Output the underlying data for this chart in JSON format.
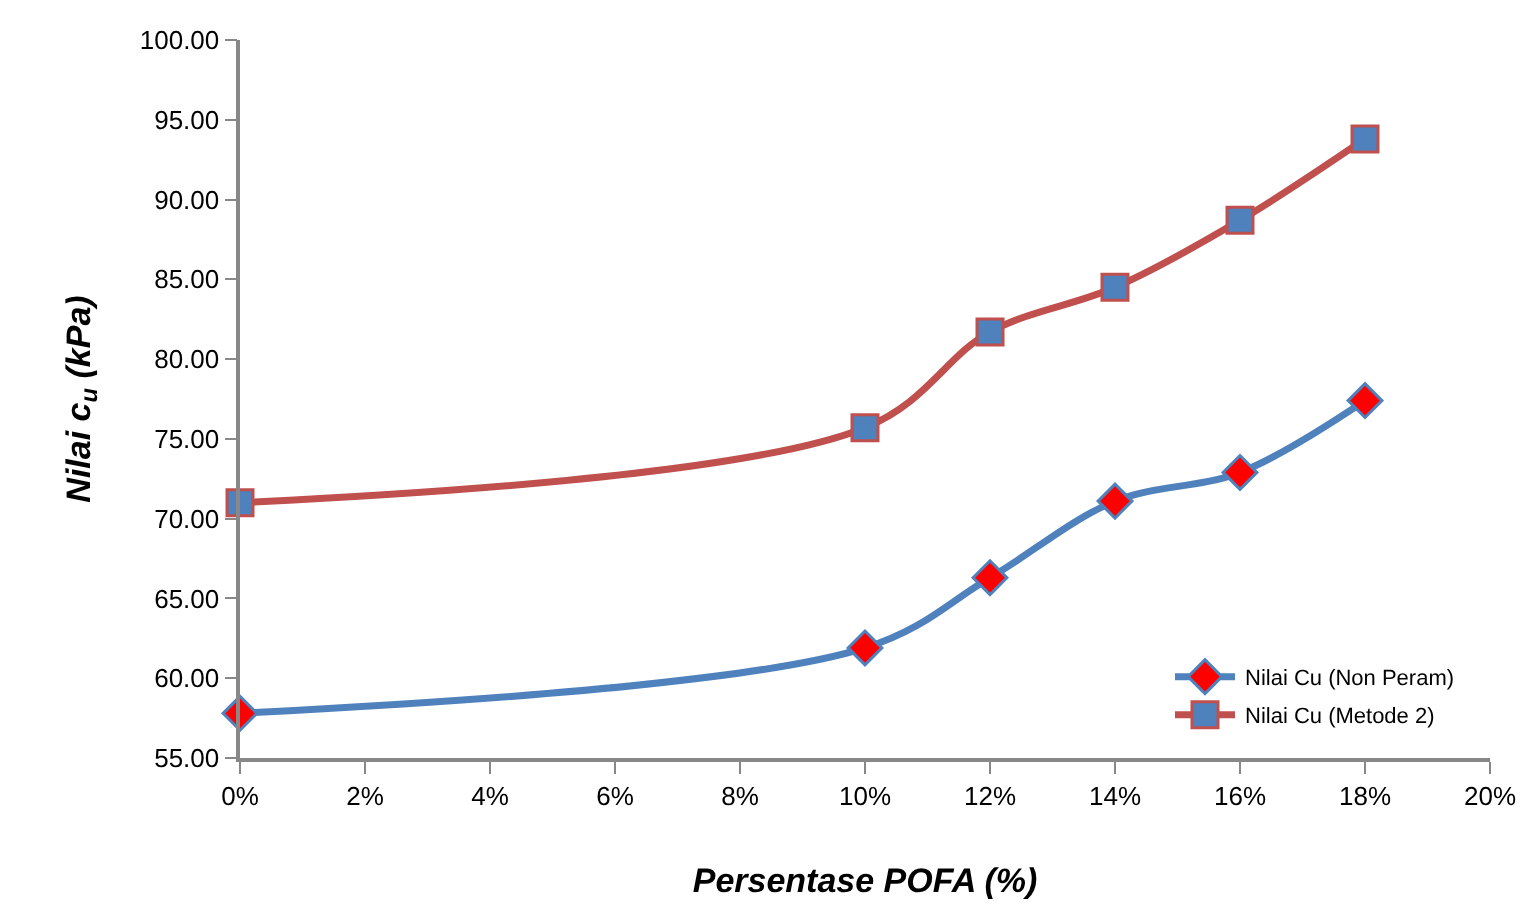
{
  "chart_data": {
    "type": "line",
    "xlabel": "Persentase POFA (%)",
    "ylabel": "Nilai c$_{u}$ (kPa)",
    "x": [
      0,
      10,
      12,
      14,
      16,
      18
    ],
    "series": [
      {
        "name": "Nilai Cu (Non Peram)",
        "color": "#4f81bd",
        "marker": "diamond",
        "colors": [
          "#ff0000",
          "#ff0000",
          "#ff0000",
          "#ff0000",
          "#ff0000",
          "#ff0000"
        ],
        "values": [
          57.8,
          61.9,
          66.3,
          71.1,
          72.9,
          77.4
        ]
      },
      {
        "name": "Nilai Cu (Metode 2)",
        "color": "#c0504d",
        "marker": "square",
        "colors": [
          "#4f81bd",
          "#4f81bd",
          "#4f81bd",
          "#4f81bd",
          "#4f81bd",
          "#4f81bd"
        ],
        "values": [
          71.0,
          75.7,
          81.7,
          84.5,
          88.7,
          93.8
        ]
      }
    ],
    "xlim": [
      0,
      20
    ],
    "xticks": [
      {
        "value": 0,
        "label": "0%"
      },
      {
        "value": 2,
        "label": "2%"
      },
      {
        "value": 4,
        "label": "4%"
      },
      {
        "value": 6,
        "label": "6%"
      },
      {
        "value": 8,
        "label": "8%"
      },
      {
        "value": 10,
        "label": "10%"
      },
      {
        "value": 12,
        "label": "12%"
      },
      {
        "value": 14,
        "label": "14%"
      },
      {
        "value": 16,
        "label": "16%"
      },
      {
        "value": 18,
        "label": "18%"
      },
      {
        "value": 20,
        "label": "20%"
      }
    ],
    "ylim": [
      55,
      100
    ],
    "yticks": [
      {
        "value": 55,
        "label": "55.00"
      },
      {
        "value": 60,
        "label": "60.00"
      },
      {
        "value": 65,
        "label": "65.00"
      },
      {
        "value": 70,
        "label": "70.00"
      },
      {
        "value": 75,
        "label": "75.00"
      },
      {
        "value": 80,
        "label": "80.00"
      },
      {
        "value": 85,
        "label": "85.00"
      },
      {
        "value": 90,
        "label": "90.00"
      },
      {
        "value": 95,
        "label": "95.00"
      },
      {
        "value": 100,
        "label": "100.00"
      }
    ],
    "legend": "bottom right",
    "line_style": "solid"
  }
}
